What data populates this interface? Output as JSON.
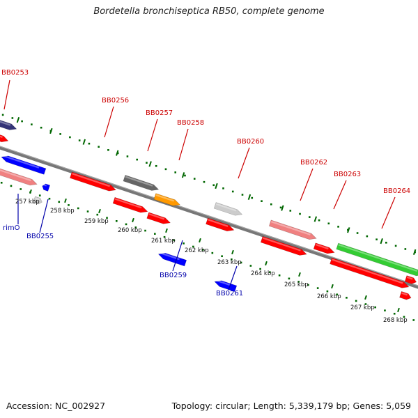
{
  "title": "Bordetella bronchiseptica RB50, complete genome",
  "footer": {
    "accession": "Accession: NC_002927",
    "topology": "Topology: circular; Length: 5,339,179 bp; Genes: 5,059"
  },
  "colors": {
    "red": "#ff0000",
    "pink": "#f08080",
    "blue": "#0000ff",
    "gray": "#666666",
    "lightgray": "#cccccc",
    "orange": "#ff9900",
    "green": "#33cc33",
    "navy": "#333377",
    "label_red": "#cc0000",
    "label_blue": "#0000aa",
    "tick_green": "#006600"
  },
  "kbp_ticks": [
    "257 kbp",
    "258 kbp",
    "259 kbp",
    "260 kbp",
    "261 kbp",
    "262 kbp",
    "263 kbp",
    "264 kbp",
    "265 kbp",
    "266 kbp",
    "267 kbp",
    "268 kbp"
  ],
  "gene_labels": [
    {
      "text": "BB0253",
      "color": "red"
    },
    {
      "text": "BB0256",
      "color": "red"
    },
    {
      "text": "BB0257",
      "color": "red"
    },
    {
      "text": "BB0258",
      "color": "red"
    },
    {
      "text": "BB0260",
      "color": "red"
    },
    {
      "text": "BB0262",
      "color": "red"
    },
    {
      "text": "BB0263",
      "color": "red"
    },
    {
      "text": "BB0264",
      "color": "red"
    },
    {
      "text": "rimO",
      "color": "blue"
    },
    {
      "text": "BB0255",
      "color": "blue"
    },
    {
      "text": "BB0259",
      "color": "blue"
    },
    {
      "text": "BB0261",
      "color": "blue"
    }
  ],
  "genes": [
    {
      "name": "gene-feature",
      "strand": "+",
      "color": "navy"
    },
    {
      "name": "gene-feature",
      "strand": "+",
      "color": "red"
    },
    {
      "name": "gene-feature",
      "strand": "-",
      "color": "blue"
    },
    {
      "name": "gene-feature",
      "strand": "+",
      "color": "pink"
    },
    {
      "name": "gene-feature",
      "strand": "-",
      "color": "blue"
    },
    {
      "name": "gene-feature",
      "strand": "+",
      "color": "lightgray"
    },
    {
      "name": "gene-feature",
      "strand": "+",
      "color": "red"
    },
    {
      "name": "gene-feature",
      "strand": "+",
      "color": "gray"
    },
    {
      "name": "gene-feature",
      "strand": "+",
      "color": "red"
    },
    {
      "name": "gene-feature",
      "strand": "+",
      "color": "orange"
    },
    {
      "name": "gene-feature",
      "strand": "+",
      "color": "red"
    },
    {
      "name": "gene-feature",
      "strand": "-",
      "color": "blue"
    },
    {
      "name": "gene-feature",
      "strand": "+",
      "color": "lightgray"
    },
    {
      "name": "gene-feature",
      "strand": "+",
      "color": "red"
    },
    {
      "name": "gene-feature",
      "strand": "-",
      "color": "blue"
    },
    {
      "name": "gene-feature",
      "strand": "+",
      "color": "pink"
    },
    {
      "name": "gene-feature",
      "strand": "+",
      "color": "red"
    },
    {
      "name": "gene-feature",
      "strand": "+",
      "color": "red"
    },
    {
      "name": "gene-feature",
      "strand": "+",
      "color": "green"
    },
    {
      "name": "gene-feature",
      "strand": "+",
      "color": "red"
    },
    {
      "name": "gene-feature",
      "strand": "+",
      "color": "red"
    },
    {
      "name": "gene-feature",
      "strand": "+",
      "color": "red"
    }
  ]
}
